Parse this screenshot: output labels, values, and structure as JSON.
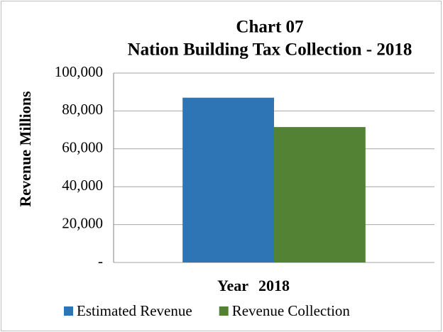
{
  "chart_data": {
    "type": "bar",
    "title": "Chart 07",
    "subtitle": "Nation Building Tax Collection - 2018",
    "x_label": "Year",
    "y_label": "Revenue  Millions",
    "categories": [
      "2018"
    ],
    "series": [
      {
        "name": "Estimated Revenue",
        "color": "#2e75b6",
        "values": [
          87000
        ]
      },
      {
        "name": "Revenue Collection",
        "color": "#548235",
        "values": [
          71500
        ]
      }
    ],
    "ylim": [
      0,
      100000
    ],
    "yticks": [
      {
        "value": 0,
        "label": "-"
      },
      {
        "value": 20000,
        "label": "20,000"
      },
      {
        "value": 40000,
        "label": "40,000"
      },
      {
        "value": 60000,
        "label": "60,000"
      },
      {
        "value": 80000,
        "label": "80,000"
      },
      {
        "value": 100000,
        "label": "100,000"
      }
    ],
    "grid": true,
    "legend": "bottom"
  }
}
